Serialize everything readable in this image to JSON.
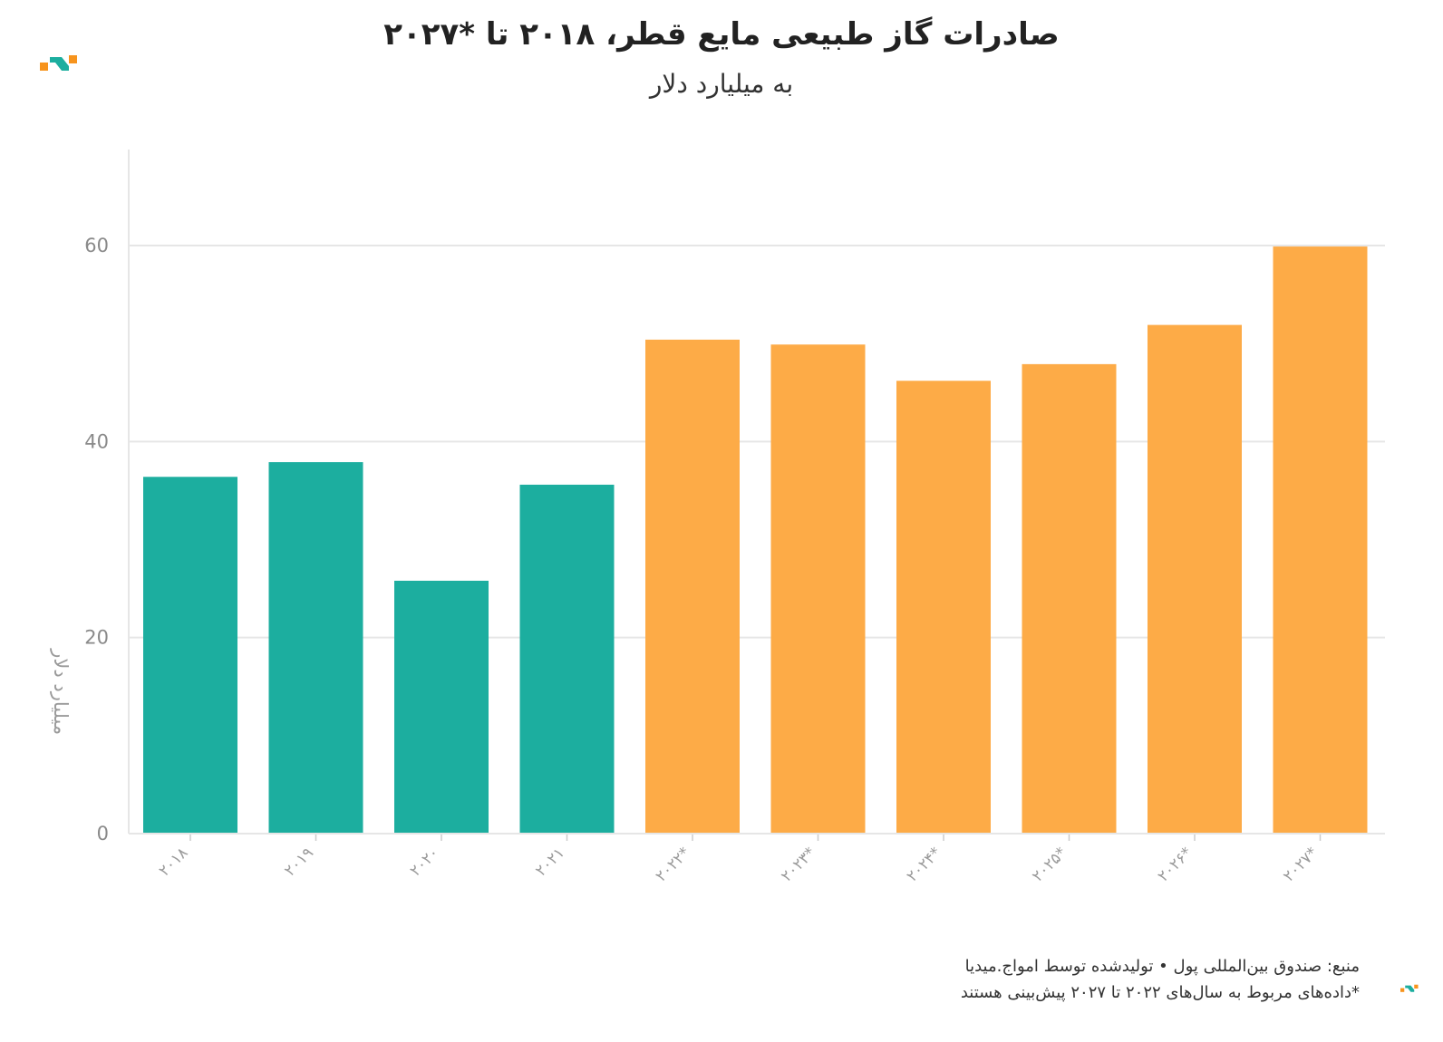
{
  "header": {
    "title": "صادرات گاز طبیعی مایع قطر، ۲۰۱۸ تا *۲۰۲۷",
    "subtitle": "به میلیارد دلار"
  },
  "footer": {
    "source": "منبع: صندوق بین‌المللی پول • تولیدشده توسط امواج.میدیا",
    "note": "*داده‌های مربوط به سال‌های ۲۰۲۲ تا ۲۰۲۷ پیش‌بینی هستند"
  },
  "colors": {
    "actual": "#1cae9f",
    "forecast": "#fdab47",
    "grid": "#e6e6e6",
    "logo_orange": "#f7941d",
    "logo_teal": "#1cae9f"
  },
  "icons": {
    "brand": "amwaj-logo-icon"
  },
  "chart_data": {
    "type": "bar",
    "title": "صادرات گاز طبیعی مایع قطر، ۲۰۱۸ تا *۲۰۲۷",
    "subtitle": "به میلیارد دلار",
    "ylabel": "میلیارد دلار",
    "xlabel": "",
    "categories": [
      "۲۰۱۸",
      "۲۰۱۹",
      "۲۰۲۰",
      "۲۰۲۱",
      "۲۰۲۲*",
      "۲۰۲۳*",
      "۲۰۲۴*",
      "۲۰۲۵*",
      "۲۰۲۶*",
      "۲۰۲۷*"
    ],
    "values": [
      36.4,
      37.9,
      25.8,
      35.6,
      50.4,
      49.9,
      46.2,
      47.9,
      51.9,
      59.9
    ],
    "forecast": [
      false,
      false,
      false,
      false,
      true,
      true,
      true,
      true,
      true,
      true
    ],
    "yticks": [
      0,
      20,
      40,
      60
    ],
    "ylim": [
      0,
      70
    ],
    "grid": true
  }
}
